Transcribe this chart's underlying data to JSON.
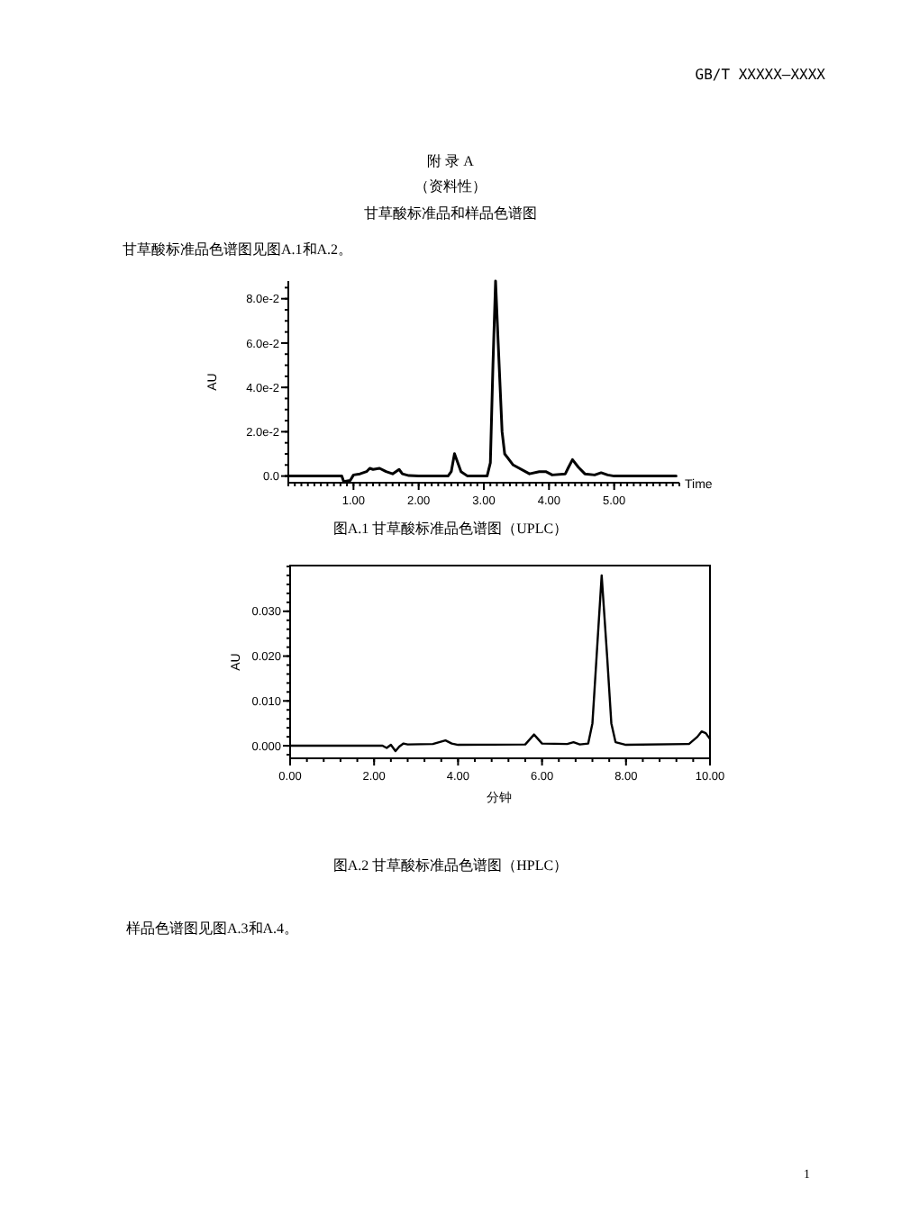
{
  "chart_data": [
    {
      "type": "line",
      "title": "图A.1 甘草酸标准品色谱图（UPLC）",
      "xlabel": "Time",
      "ylabel": "AU",
      "annotations": [
        "GB/T XXXXX—XXXX",
        "附 录 A",
        "（资料性）",
        "甘草酸标准品和样品色谱图",
        "甘草酸标准品色谱图见图A.1和A.2。"
      ],
      "xlim": [
        0,
        6.0
      ],
      "ylim": [
        -0.003,
        0.088
      ],
      "xticks": [
        {
          "value": 1,
          "label": "1.00"
        },
        {
          "value": 2,
          "label": "2.00"
        },
        {
          "value": 3,
          "label": "3.00"
        },
        {
          "value": 4,
          "label": "4.00"
        },
        {
          "value": 5,
          "label": "5.00"
        }
      ],
      "yticks": [
        {
          "value": 0,
          "label": "0.0"
        },
        {
          "value": 0.02,
          "label": "2.0e-2"
        },
        {
          "value": 0.04,
          "label": "4.0e-2"
        },
        {
          "value": 0.06,
          "label": "6.0e-2"
        },
        {
          "value": 0.08,
          "label": "8.0e-2"
        }
      ],
      "x": [
        0,
        0.82,
        0.85,
        0.95,
        1.0,
        1.1,
        1.2,
        1.25,
        1.3,
        1.4,
        1.5,
        1.6,
        1.7,
        1.75,
        1.85,
        2.0,
        2.45,
        2.5,
        2.55,
        2.6,
        2.65,
        2.75,
        3.05,
        3.1,
        3.14,
        3.18,
        3.22,
        3.28,
        3.32,
        3.45,
        3.7,
        3.85,
        3.95,
        4.05,
        4.25,
        4.3,
        4.36,
        4.45,
        4.55,
        4.7,
        4.8,
        4.9,
        5.0,
        5.95
      ],
      "series": [
        {
          "color": "#000000",
          "values": [
            0,
            0,
            -0.0025,
            -0.002,
            0.0005,
            0.001,
            0.002,
            0.0035,
            0.003,
            0.0035,
            0.002,
            0.001,
            0.003,
            0.001,
            0.0002,
            0,
            0,
            0.002,
            0.0101,
            0.006,
            0.002,
            0,
            0,
            0.006,
            0.05,
            0.088,
            0.06,
            0.02,
            0.01,
            0.005,
            0.001,
            0.002,
            0.002,
            0.0005,
            0.001,
            0.004,
            0.0074,
            0.004,
            0.001,
            0.0005,
            0.0015,
            0.0005,
            0,
            0
          ]
        }
      ]
    },
    {
      "type": "line",
      "title": "图A.2 甘草酸标准品色谱图（HPLC）",
      "xlabel": "分钟",
      "ylabel": "AU",
      "annotations": [
        "样品色谱图见图A.3和A.4。",
        "1"
      ],
      "xlim": [
        0,
        10
      ],
      "ylim": [
        -0.0028,
        0.0402
      ],
      "xticks": [
        {
          "value": 0,
          "label": "0.00"
        },
        {
          "value": 2,
          "label": "2.00"
        },
        {
          "value": 4,
          "label": "4.00"
        },
        {
          "value": 6,
          "label": "6.00"
        },
        {
          "value": 8,
          "label": "8.00"
        },
        {
          "value": 10,
          "label": "10.00"
        }
      ],
      "yticks": [
        {
          "value": 0,
          "label": "0.000"
        },
        {
          "value": 0.01,
          "label": "0.010"
        },
        {
          "value": 0.02,
          "label": "0.020"
        },
        {
          "value": 0.03,
          "label": "0.030"
        }
      ],
      "x": [
        0,
        2.2,
        2.3,
        2.4,
        2.51,
        2.6,
        2.7,
        2.8,
        3.4,
        3.7,
        3.85,
        4.0,
        5.6,
        5.81,
        6.0,
        6.6,
        6.75,
        6.9,
        7.1,
        7.2,
        7.3,
        7.42,
        7.55,
        7.65,
        7.75,
        8.0,
        9.5,
        9.7,
        9.8,
        9.9,
        10.0
      ],
      "series": [
        {
          "color": "#000000",
          "values": [
            0,
            0,
            -0.0005,
            0.0002,
            -0.0012,
            -0.0002,
            0.0005,
            0.0003,
            0.0004,
            0.0012,
            0.0005,
            0.0002,
            0.0003,
            0.0025,
            0.0005,
            0.0004,
            0.0008,
            0.0003,
            0.0005,
            0.005,
            0.02,
            0.038,
            0.02,
            0.005,
            0.0008,
            0.0002,
            0.0004,
            0.002,
            0.0032,
            0.0028,
            0.0015
          ]
        }
      ]
    }
  ]
}
